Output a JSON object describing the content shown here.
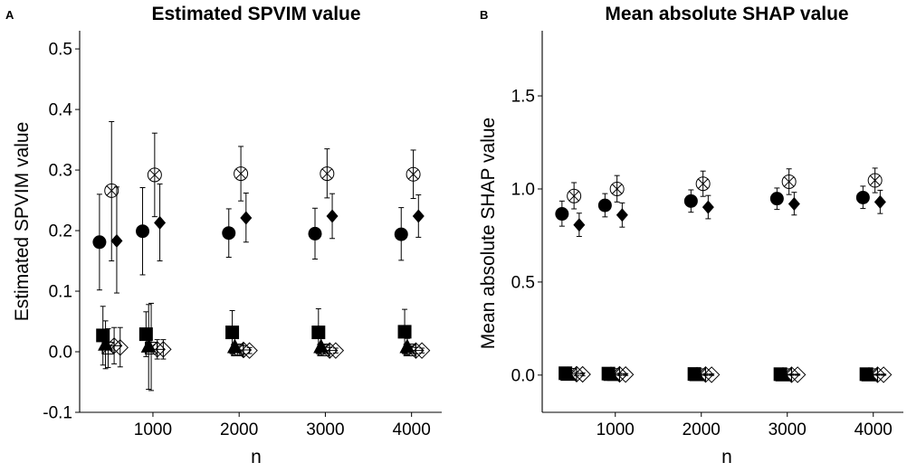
{
  "chart_data": [
    {
      "type": "scatter",
      "panel_label": "A",
      "title": "Estimated SPVIM value",
      "xlabel": "n",
      "ylabel": "Estimated SPVIM value",
      "xlim": [
        150,
        4350
      ],
      "ylim": [
        -0.1,
        0.53
      ],
      "x_ticks": [
        1000,
        2000,
        3000,
        4000
      ],
      "x_tick_labels": [
        "1000",
        "2000",
        "3000",
        "4000"
      ],
      "y_ticks": [
        -0.1,
        0.0,
        0.1,
        0.2,
        0.3,
        0.4,
        0.5
      ],
      "y_tick_labels": [
        "-0.1",
        "0.0",
        "0.1",
        "0.2",
        "0.3",
        "0.4",
        "0.5"
      ],
      "grid": false,
      "n_values": [
        500,
        1000,
        2000,
        3000,
        4000
      ],
      "series": [
        {
          "marker": "circle",
          "offset": -120,
          "values": [
            0.181,
            0.199,
            0.196,
            0.195,
            0.194
          ],
          "lower": [
            0.102,
            0.127,
            0.156,
            0.153,
            0.151
          ],
          "upper": [
            0.26,
            0.271,
            0.236,
            0.237,
            0.238
          ]
        },
        {
          "marker": "square",
          "offset": -80,
          "values": [
            0.027,
            0.029,
            0.032,
            0.032,
            0.033
          ],
          "lower": [
            -0.022,
            -0.008,
            -0.003,
            -0.003,
            -0.003
          ],
          "upper": [
            0.075,
            0.066,
            0.068,
            0.071,
            0.07
          ]
        },
        {
          "marker": "triangle",
          "offset": -50,
          "values": [
            0.013,
            0.01,
            0.009,
            0.009,
            0.009
          ],
          "lower": [
            -0.028,
            -0.062,
            -0.006,
            -0.006,
            -0.005
          ],
          "upper": [
            0.051,
            0.078,
            0.022,
            0.022,
            0.022
          ]
        },
        {
          "marker": "square-cross",
          "offset": -20,
          "values": [
            0.006,
            0.006,
            0.003,
            0.003,
            0.003
          ],
          "lower": [
            -0.026,
            -0.064,
            -0.005,
            -0.004,
            -0.004
          ],
          "upper": [
            0.038,
            0.08,
            0.012,
            0.011,
            0.01
          ]
        },
        {
          "marker": "circle-x",
          "offset": 20,
          "values": [
            0.266,
            0.292,
            0.294,
            0.294,
            0.293
          ],
          "lower": [
            0.15,
            0.223,
            0.249,
            0.254,
            0.253
          ],
          "upper": [
            0.38,
            0.361,
            0.339,
            0.335,
            0.333
          ]
        },
        {
          "marker": "diamond-plus",
          "offset": 50,
          "values": [
            0.01,
            0.004,
            0.003,
            0.002,
            0.002
          ],
          "lower": [
            -0.02,
            -0.012,
            -0.004,
            -0.003,
            -0.003
          ],
          "upper": [
            0.04,
            0.02,
            0.01,
            0.007,
            0.007
          ]
        },
        {
          "marker": "diamond",
          "offset": 80,
          "values": [
            0.183,
            0.213,
            0.221,
            0.224,
            0.224
          ],
          "lower": [
            0.097,
            0.15,
            0.181,
            0.187,
            0.189
          ],
          "upper": [
            0.272,
            0.277,
            0.262,
            0.261,
            0.259
          ]
        },
        {
          "marker": "diamond-open",
          "offset": 120,
          "values": [
            0.007,
            0.004,
            0.002,
            0.002,
            0.002
          ],
          "lower": [
            -0.025,
            -0.012,
            -0.003,
            -0.002,
            -0.002
          ],
          "upper": [
            0.04,
            0.02,
            0.007,
            0.006,
            0.006
          ]
        }
      ]
    },
    {
      "type": "scatter",
      "panel_label": "B",
      "title": "Mean absolute SHAP value",
      "xlabel": "n",
      "ylabel": "Mean absolute SHAP value",
      "xlim": [
        150,
        4350
      ],
      "ylim": [
        -0.2,
        1.85
      ],
      "x_ticks": [
        1000,
        2000,
        3000,
        4000
      ],
      "x_tick_labels": [
        "1000",
        "2000",
        "3000",
        "4000"
      ],
      "y_ticks": [
        0.0,
        0.5,
        1.0,
        1.5
      ],
      "y_tick_labels": [
        "0.0",
        "0.5",
        "1.0",
        "1.5"
      ],
      "grid": false,
      "n_values": [
        500,
        1000,
        2000,
        3000,
        4000
      ],
      "series": [
        {
          "marker": "circle",
          "offset": -120,
          "values": [
            0.866,
            0.912,
            0.935,
            0.948,
            0.954
          ],
          "lower": [
            0.8,
            0.85,
            0.875,
            0.89,
            0.895
          ],
          "upper": [
            0.935,
            0.975,
            0.995,
            1.005,
            1.015
          ]
        },
        {
          "marker": "square",
          "offset": -80,
          "values": [
            0.01,
            0.008,
            0.006,
            0.005,
            0.005
          ],
          "lower": [
            -0.002,
            0.0,
            0.0,
            0.0,
            0.0
          ],
          "upper": [
            0.022,
            0.016,
            0.012,
            0.01,
            0.01
          ]
        },
        {
          "marker": "triangle",
          "offset": -50,
          "values": [
            0.006,
            0.005,
            0.004,
            0.003,
            0.003
          ],
          "lower": [
            -0.004,
            -0.002,
            -0.001,
            -0.001,
            -0.001
          ],
          "upper": [
            0.016,
            0.012,
            0.009,
            0.007,
            0.007
          ]
        },
        {
          "marker": "square-cross",
          "offset": -20,
          "values": [
            0.004,
            0.003,
            0.002,
            0.002,
            0.002
          ],
          "lower": [
            -0.004,
            -0.002,
            -0.002,
            -0.001,
            -0.001
          ],
          "upper": [
            0.012,
            0.008,
            0.006,
            0.005,
            0.005
          ]
        },
        {
          "marker": "circle-x",
          "offset": 20,
          "values": [
            0.962,
            1.0,
            1.028,
            1.039,
            1.046
          ],
          "lower": [
            0.893,
            0.93,
            0.96,
            0.97,
            0.98
          ],
          "upper": [
            1.034,
            1.072,
            1.096,
            1.108,
            1.112
          ]
        },
        {
          "marker": "diamond-plus",
          "offset": 50,
          "values": [
            0.005,
            0.004,
            0.003,
            0.002,
            0.002
          ],
          "lower": [
            -0.004,
            -0.002,
            -0.002,
            -0.001,
            -0.001
          ],
          "upper": [
            0.014,
            0.01,
            0.008,
            0.006,
            0.006
          ]
        },
        {
          "marker": "diamond",
          "offset": 80,
          "values": [
            0.807,
            0.86,
            0.902,
            0.92,
            0.93
          ],
          "lower": [
            0.745,
            0.795,
            0.84,
            0.86,
            0.868
          ],
          "upper": [
            0.87,
            0.925,
            0.965,
            0.982,
            0.993
          ]
        },
        {
          "marker": "diamond-open",
          "offset": 120,
          "values": [
            0.004,
            0.003,
            0.002,
            0.002,
            0.002
          ],
          "lower": [
            -0.004,
            -0.002,
            -0.002,
            -0.001,
            -0.001
          ],
          "upper": [
            0.012,
            0.008,
            0.006,
            0.005,
            0.005
          ]
        }
      ]
    }
  ]
}
